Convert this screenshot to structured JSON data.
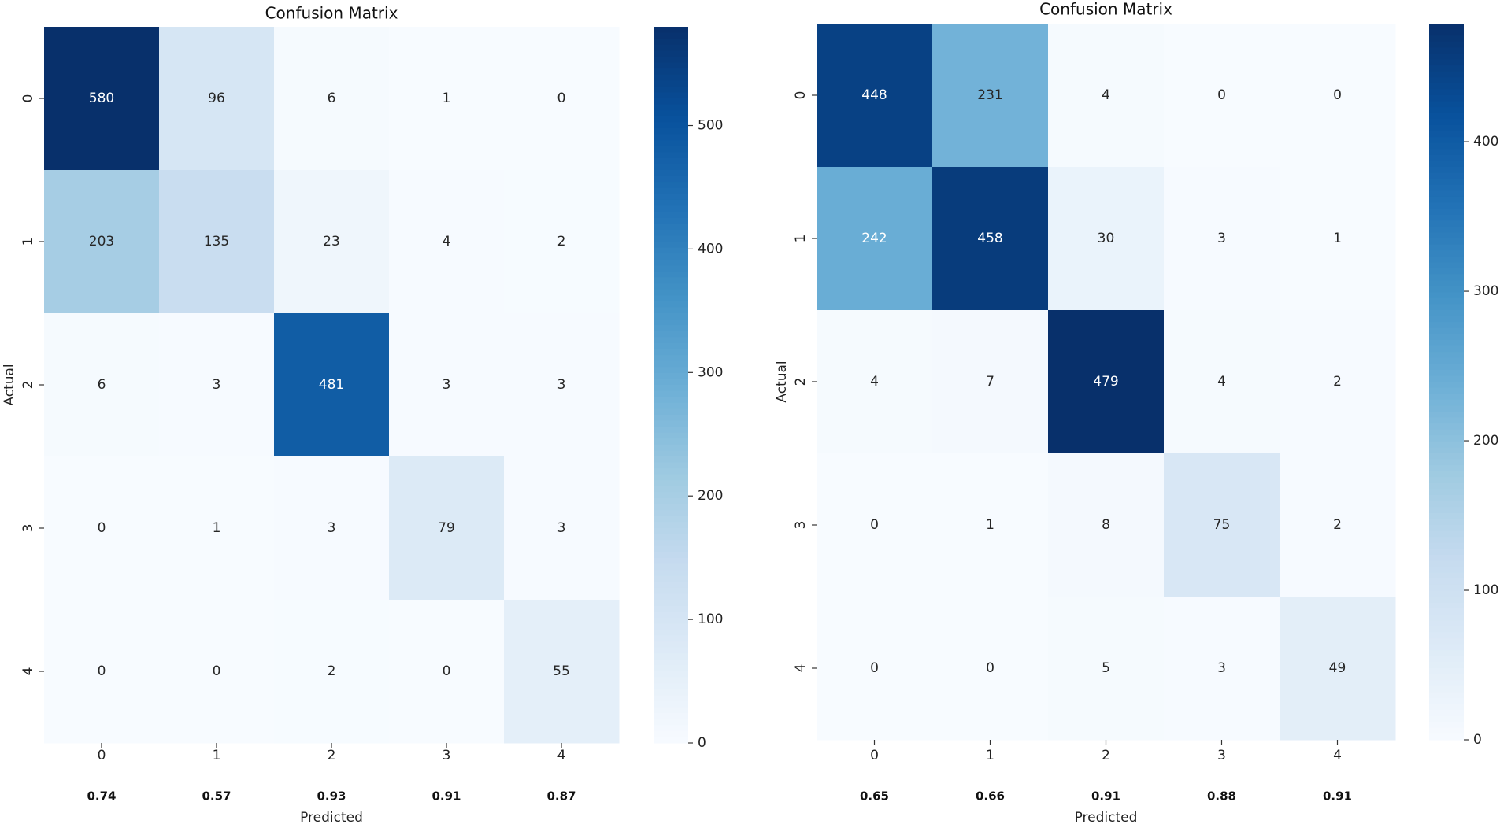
{
  "chart_data": [
    {
      "type": "heatmap",
      "title": "Confusion Matrix",
      "xlabel": "Predicted",
      "ylabel": "Actual",
      "x_categories": [
        "0",
        "1",
        "2",
        "3",
        "4"
      ],
      "y_categories": [
        "0",
        "1",
        "2",
        "3",
        "4"
      ],
      "matrix": [
        [
          580,
          96,
          6,
          1,
          0
        ],
        [
          203,
          135,
          23,
          4,
          2
        ],
        [
          6,
          3,
          481,
          3,
          3
        ],
        [
          0,
          1,
          3,
          79,
          3
        ],
        [
          0,
          0,
          2,
          0,
          55
        ]
      ],
      "per_class_scores": [
        "0.74",
        "0.57",
        "0.93",
        "0.91",
        "0.87"
      ],
      "colorbar": {
        "min": 0,
        "max": 580,
        "ticks": [
          0,
          100,
          200,
          300,
          400,
          500
        ]
      },
      "colormap": "Blues"
    },
    {
      "type": "heatmap",
      "title": "Confusion Matrix",
      "xlabel": "Predicted",
      "ylabel": "Actual",
      "x_categories": [
        "0",
        "1",
        "2",
        "3",
        "4"
      ],
      "y_categories": [
        "0",
        "1",
        "2",
        "3",
        "4"
      ],
      "matrix": [
        [
          448,
          231,
          4,
          0,
          0
        ],
        [
          242,
          458,
          30,
          3,
          1
        ],
        [
          4,
          7,
          479,
          4,
          2
        ],
        [
          0,
          1,
          8,
          75,
          2
        ],
        [
          0,
          0,
          5,
          3,
          49
        ]
      ],
      "per_class_scores": [
        "0.65",
        "0.66",
        "0.91",
        "0.88",
        "0.91"
      ],
      "colorbar": {
        "min": 0,
        "max": 479,
        "ticks": [
          0,
          100,
          200,
          300,
          400
        ]
      },
      "colormap": "Blues"
    }
  ],
  "colors": {
    "blues": [
      "#f7fbff",
      "#deebf7",
      "#c6dbef",
      "#9ecae1",
      "#6baed6",
      "#4292c6",
      "#2171b5",
      "#08519c",
      "#08306b"
    ],
    "text_dark": "#262626",
    "text_light": "#ffffff"
  }
}
